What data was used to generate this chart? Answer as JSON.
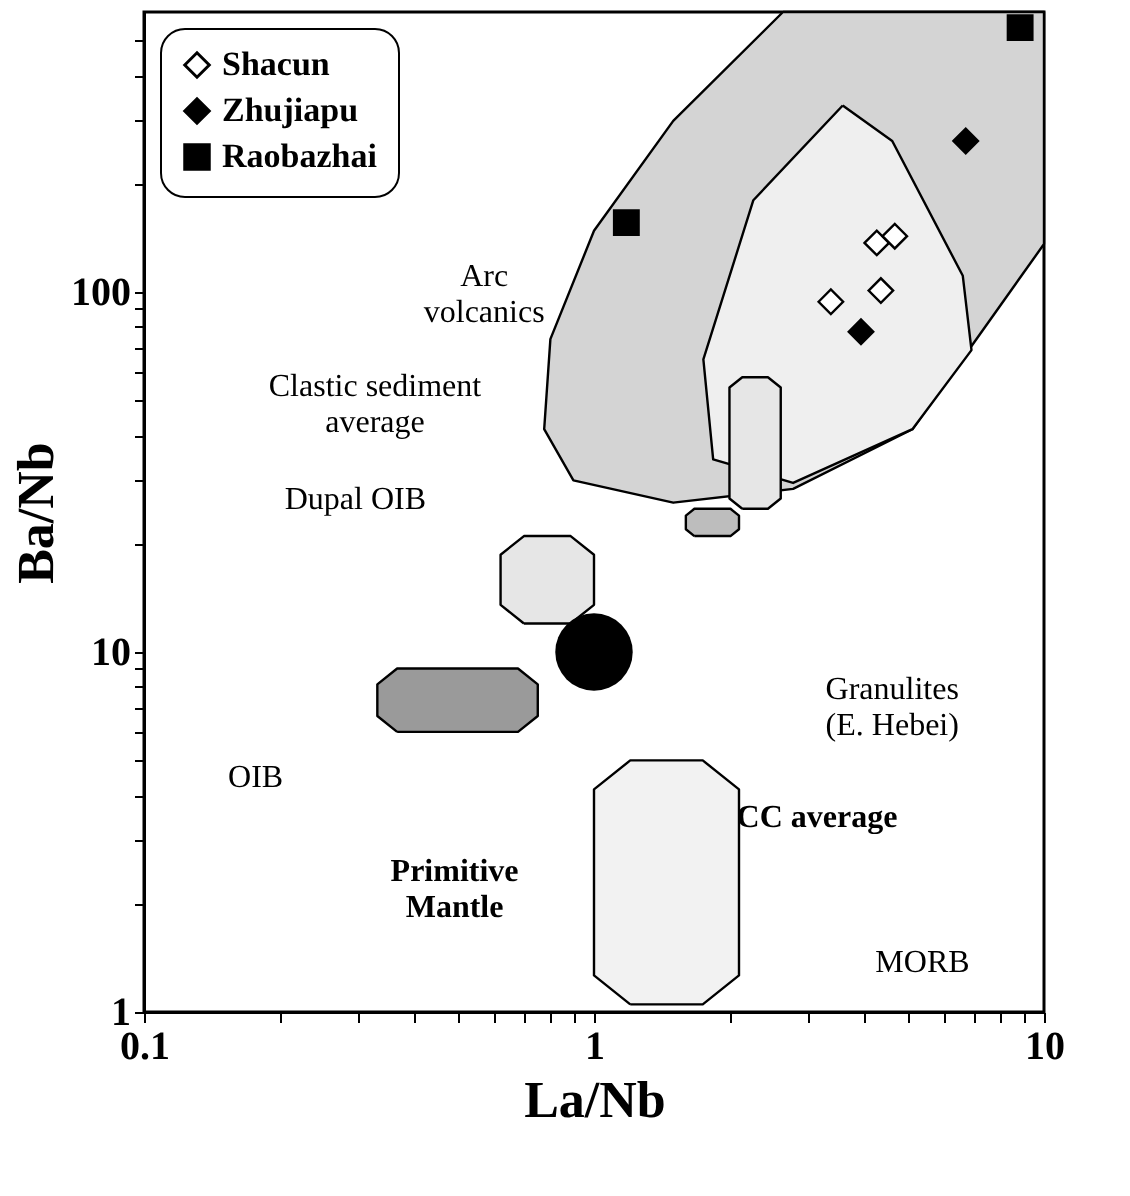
{
  "chart_data": {
    "type": "scatter",
    "xlabel": "La/Nb",
    "ylabel": "Ba/Nb",
    "log": "xy",
    "xlim": [
      0.1,
      10
    ],
    "ylim": [
      1,
      600
    ],
    "xticks": [
      0.1,
      {
        "value": 0.2,
        "label": null
      },
      {
        "value": 0.3,
        "label": null
      },
      {
        "value": 0.4,
        "label": null
      },
      {
        "value": 0.5,
        "label": null
      },
      {
        "value": 0.6,
        "label": null
      },
      {
        "value": 0.7,
        "label": null
      },
      {
        "value": 0.8,
        "label": null
      },
      {
        "value": 0.9,
        "label": null
      },
      1,
      {
        "value": 2,
        "label": null
      },
      {
        "value": 3,
        "label": null
      },
      {
        "value": 4,
        "label": null
      },
      {
        "value": 5,
        "label": null
      },
      {
        "value": 6,
        "label": null
      },
      {
        "value": 7,
        "label": null
      },
      {
        "value": 8,
        "label": null
      },
      {
        "value": 9,
        "label": null
      },
      10
    ],
    "yticks": [
      1,
      {
        "value": 2,
        "label": null
      },
      {
        "value": 3,
        "label": null
      },
      {
        "value": 4,
        "label": null
      },
      {
        "value": 5,
        "label": null
      },
      {
        "value": 6,
        "label": null
      },
      {
        "value": 7,
        "label": null
      },
      {
        "value": 8,
        "label": null
      },
      {
        "value": 9,
        "label": null
      },
      10,
      {
        "value": 20,
        "label": null
      },
      {
        "value": 30,
        "label": null
      },
      {
        "value": 40,
        "label": null
      },
      {
        "value": 50,
        "label": null
      },
      {
        "value": 60,
        "label": null
      },
      {
        "value": 70,
        "label": null
      },
      {
        "value": 80,
        "label": null
      },
      {
        "value": 90,
        "label": null
      },
      100,
      {
        "value": 200,
        "label": null
      },
      {
        "value": 300,
        "label": null
      },
      {
        "value": 400,
        "label": null
      },
      {
        "value": 500,
        "label": null
      }
    ],
    "grid": false,
    "legend": "top left",
    "series": [
      {
        "type": "bubble",
        "color": "#000000",
        "marker": "circle",
        "x": [
          1
        ],
        "values": [
          10
        ],
        "sizes": [
          1
        ]
      },
      {
        "name": "Shacun",
        "color": "#ffffff",
        "marker": "diamond",
        "x": [
          4.25,
          4.66,
          3.36,
          4.34
        ],
        "values": [
          137,
          143,
          94,
          101
        ]
      },
      {
        "name": "Zhujiapu",
        "color": "#000000",
        "marker": "diamond",
        "x": [
          6.7,
          3.92
        ],
        "values": [
          263,
          77.6
        ]
      },
      {
        "name": "Raobazhai",
        "color": "#000000",
        "marker": "square",
        "x": [
          8.85,
          1.18
        ],
        "values": [
          543,
          156
        ]
      }
    ],
    "annotations": [
      "Arc\nvolcanics",
      "Clastic sediment\naverage",
      "Dupal OIB",
      "OIB",
      "Primitive\nMantle",
      "CC average",
      "Granulites\n(E. Hebei)",
      "MORB"
    ]
  }
}
